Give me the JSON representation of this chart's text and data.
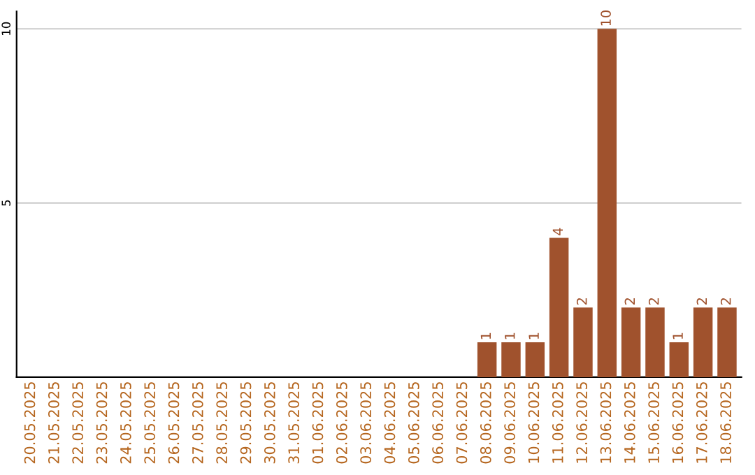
{
  "chart_data": {
    "type": "bar",
    "categories": [
      "20.05.2025",
      "21.05.2025",
      "22.05.2025",
      "23.05.2025",
      "24.05.2025",
      "25.05.2025",
      "26.05.2025",
      "27.05.2025",
      "28.05.2025",
      "29.05.2025",
      "30.05.2025",
      "31.05.2025",
      "01.06.2025",
      "02.06.2025",
      "03.06.2025",
      "04.06.2025",
      "05.06.2025",
      "06.06.2025",
      "07.06.2025",
      "08.06.2025",
      "09.06.2025",
      "10.06.2025",
      "11.06.2025",
      "12.06.2025",
      "13.06.2025",
      "14.06.2025",
      "15.06.2025",
      "16.06.2025",
      "17.06.2025",
      "18.06.2025"
    ],
    "values": [
      0,
      0,
      0,
      0,
      0,
      0,
      0,
      0,
      0,
      0,
      0,
      0,
      0,
      0,
      0,
      0,
      0,
      0,
      0,
      1,
      1,
      1,
      4,
      2,
      10,
      2,
      2,
      1,
      2,
      2
    ],
    "value_labels": [
      null,
      null,
      null,
      null,
      null,
      null,
      null,
      null,
      null,
      null,
      null,
      null,
      null,
      null,
      null,
      null,
      null,
      null,
      null,
      "1",
      "1",
      "1",
      "4",
      "2",
      "10",
      "2",
      "2",
      "1",
      "2",
      "2"
    ],
    "color": "#a0522d",
    "ylim": [
      0,
      10.5
    ],
    "yticks": [
      5,
      10
    ],
    "grid": "y"
  }
}
